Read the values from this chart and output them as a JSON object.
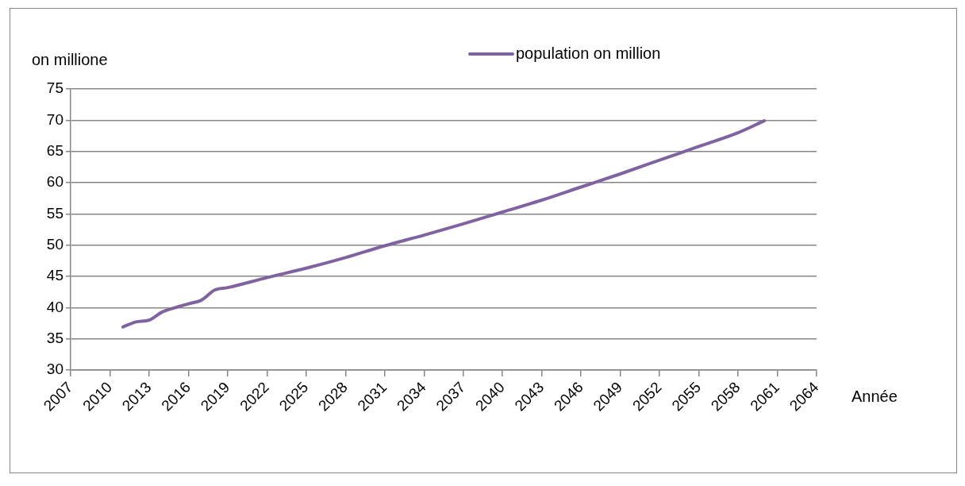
{
  "chart_data": {
    "type": "line",
    "ylabel": "on millione",
    "xlabel": "Année",
    "series": [
      {
        "name": "population on million",
        "color": "#7f63a1",
        "x": [
          2011,
          2012,
          2013,
          2014,
          2015,
          2016,
          2017,
          2018,
          2019,
          2022,
          2025,
          2028,
          2031,
          2034,
          2037,
          2040,
          2043,
          2046,
          2049,
          2052,
          2055,
          2058,
          2060
        ],
        "values": [
          36.9,
          37.7,
          38.0,
          39.3,
          40.0,
          40.6,
          41.2,
          42.8,
          43.2,
          44.8,
          46.3,
          48.0,
          49.9,
          51.6,
          53.4,
          55.3,
          57.2,
          59.3,
          61.4,
          63.6,
          65.8,
          68.0,
          69.9
        ]
      }
    ],
    "xlim": [
      2007,
      2064
    ],
    "xticks": [
      2007,
      2010,
      2013,
      2016,
      2019,
      2022,
      2025,
      2028,
      2031,
      2034,
      2037,
      2040,
      2043,
      2046,
      2049,
      2052,
      2055,
      2058,
      2061,
      2064
    ],
    "ylim": [
      30,
      75
    ],
    "yticks": [
      30,
      35,
      40,
      45,
      50,
      55,
      60,
      65,
      70,
      75
    ],
    "grid": "y",
    "legend": "top right",
    "marker": "none",
    "line_style": "solid"
  }
}
